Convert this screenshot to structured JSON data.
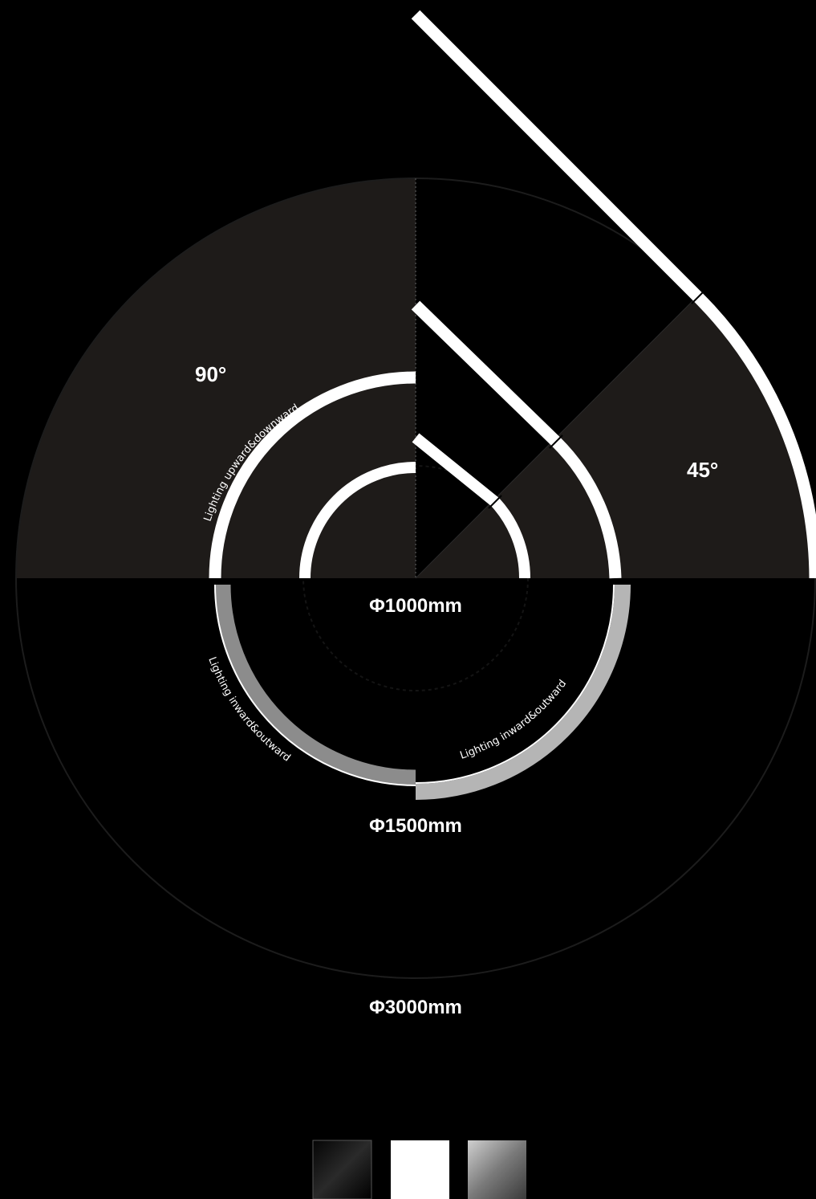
{
  "labels": {
    "angle_90": "90°",
    "angle_45": "45°",
    "diameter_1000": "Φ1000mm",
    "diameter_1500": "Φ1500mm",
    "diameter_3000": "Φ3000mm",
    "lighting_up_down": "Lighting upward&downward",
    "lighting_in_out_left": "Lighting inward&outward",
    "lighting_in_out_right": "Lighting inward&outward"
  },
  "colors": {
    "background": "#000000",
    "sector": "#1e1b19",
    "stroke_white": "#ffffff",
    "stroke_gray": "#8c8c8c",
    "swatch_black": "#1a1a1a",
    "swatch_white": "#ffffff",
    "swatch_gray": "#9a9a9a"
  },
  "swatches": [
    {
      "name": "black"
    },
    {
      "name": "white"
    },
    {
      "name": "gray"
    }
  ]
}
